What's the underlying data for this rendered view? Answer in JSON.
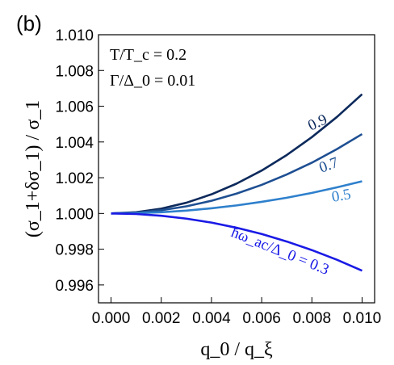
{
  "panel_label": "(b)",
  "annotations": {
    "line1": "T/T_c = 0.2",
    "line2": "Γ/Δ_0 = 0.01"
  },
  "chart_data": {
    "type": "line",
    "title": "",
    "xlabel": "q_0 / q_ξ",
    "ylabel": "(σ_1+δσ_1) / σ_1",
    "xlim": [
      -0.0005,
      0.0105
    ],
    "ylim": [
      0.995,
      1.01
    ],
    "xticks": [
      "0.000",
      "0.002",
      "0.004",
      "0.006",
      "0.008",
      "0.010"
    ],
    "yticks": [
      "0.996",
      "0.998",
      "1.000",
      "1.002",
      "1.004",
      "1.006",
      "1.008",
      "1.010"
    ],
    "x": [
      0,
      0.001,
      0.002,
      0.003,
      0.004,
      0.005,
      0.006,
      0.007,
      0.008,
      0.009,
      0.01
    ],
    "series": [
      {
        "name": "0.9",
        "color": "#0d2a5c",
        "values": [
          1.0,
          1.00007,
          1.00027,
          1.0006,
          1.00107,
          1.00167,
          1.0024,
          1.00327,
          1.00427,
          1.0054,
          1.00667
        ]
      },
      {
        "name": "0.7",
        "color": "#1e4f92",
        "values": [
          1.0,
          1.00004,
          1.00018,
          1.0004,
          1.00071,
          1.00111,
          1.0016,
          1.00218,
          1.00284,
          1.0036,
          1.00444
        ]
      },
      {
        "name": "0.5",
        "color": "#2f80cc",
        "values": [
          1.0,
          1.00002,
          1.00007,
          1.00016,
          1.00029,
          1.00045,
          1.00065,
          1.00088,
          1.00115,
          1.00146,
          1.0018
        ]
      },
      {
        "name": "ħω_ac/Δ_0 = 0.3",
        "color": "#1a1ae6",
        "values": [
          1.0,
          0.99997,
          0.99987,
          0.99971,
          0.99949,
          0.9992,
          0.99885,
          0.99843,
          0.99795,
          0.99741,
          0.9968
        ]
      }
    ],
    "grid": false,
    "legend": "none"
  }
}
